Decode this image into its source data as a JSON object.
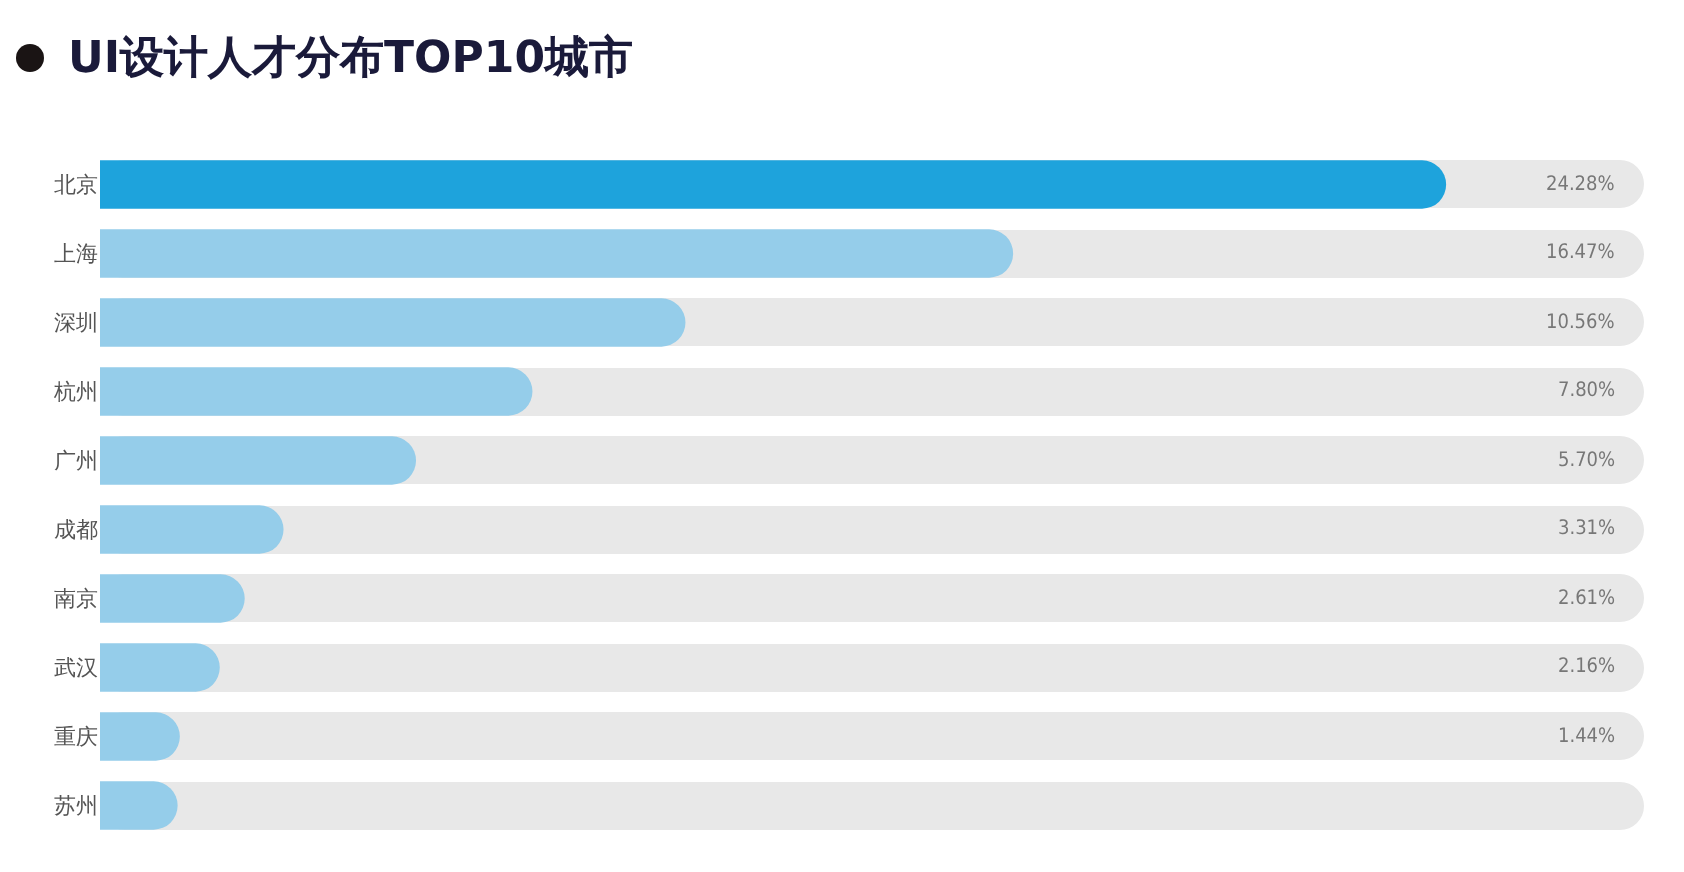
{
  "chart_data": {
    "type": "bar",
    "orientation": "horizontal",
    "title": "UI设计人才分布TOP10城市",
    "categories": [
      "北京",
      "上海",
      "深圳",
      "杭州",
      "广州",
      "成都",
      "南京",
      "武汉",
      "重庆",
      "苏州"
    ],
    "values": [
      24.28,
      16.47,
      10.56,
      7.8,
      5.7,
      3.31,
      2.61,
      2.16,
      1.44,
      1.4
    ],
    "colors": [
      "#1ea3dc",
      "#95cdea",
      "#95cdea",
      "#95cdea",
      "#95cdea",
      "#95cdea",
      "#95cdea",
      "#95cdea",
      "#95cdea",
      "#95cdea"
    ],
    "value_labels": [
      "24.28%",
      "16.47%",
      "10.56%",
      "7.80%",
      "5.70%",
      "3.31%",
      "2.61%",
      "2.16%",
      "1.44%",
      null
    ]
  }
}
